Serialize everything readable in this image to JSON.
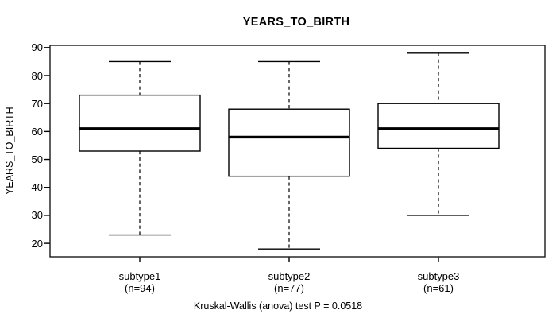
{
  "title": "YEARS_TO_BIRTH",
  "caption": "Kruskal-Wallis (anova) test P = 0.0518",
  "colors": {
    "line": "#000000",
    "background": "#ffffff"
  },
  "chart_data": {
    "type": "boxplot",
    "title": "YEARS_TO_BIRTH",
    "xlabel": "",
    "ylabel": "YEARS_TO_BIRTH",
    "yticks": [
      20,
      30,
      40,
      50,
      60,
      70,
      80,
      90
    ],
    "ylim": [
      15.2,
      90.8
    ],
    "grid": false,
    "legend": "none",
    "annotation": "Kruskal-Wallis (anova) test P = 0.0518",
    "groups": [
      {
        "label": "subtype1",
        "n_label": "(n=94)",
        "n": 94,
        "whisker_low": 23,
        "q1": 53,
        "median": 61,
        "q3": 73,
        "whisker_high": 85
      },
      {
        "label": "subtype2",
        "n_label": "(n=77)",
        "n": 77,
        "whisker_low": 18,
        "q1": 44,
        "median": 58,
        "q3": 68,
        "whisker_high": 85
      },
      {
        "label": "subtype3",
        "n_label": "(n=61)",
        "n": 61,
        "whisker_low": 30,
        "q1": 54,
        "median": 61,
        "q3": 70,
        "whisker_high": 88
      }
    ]
  }
}
